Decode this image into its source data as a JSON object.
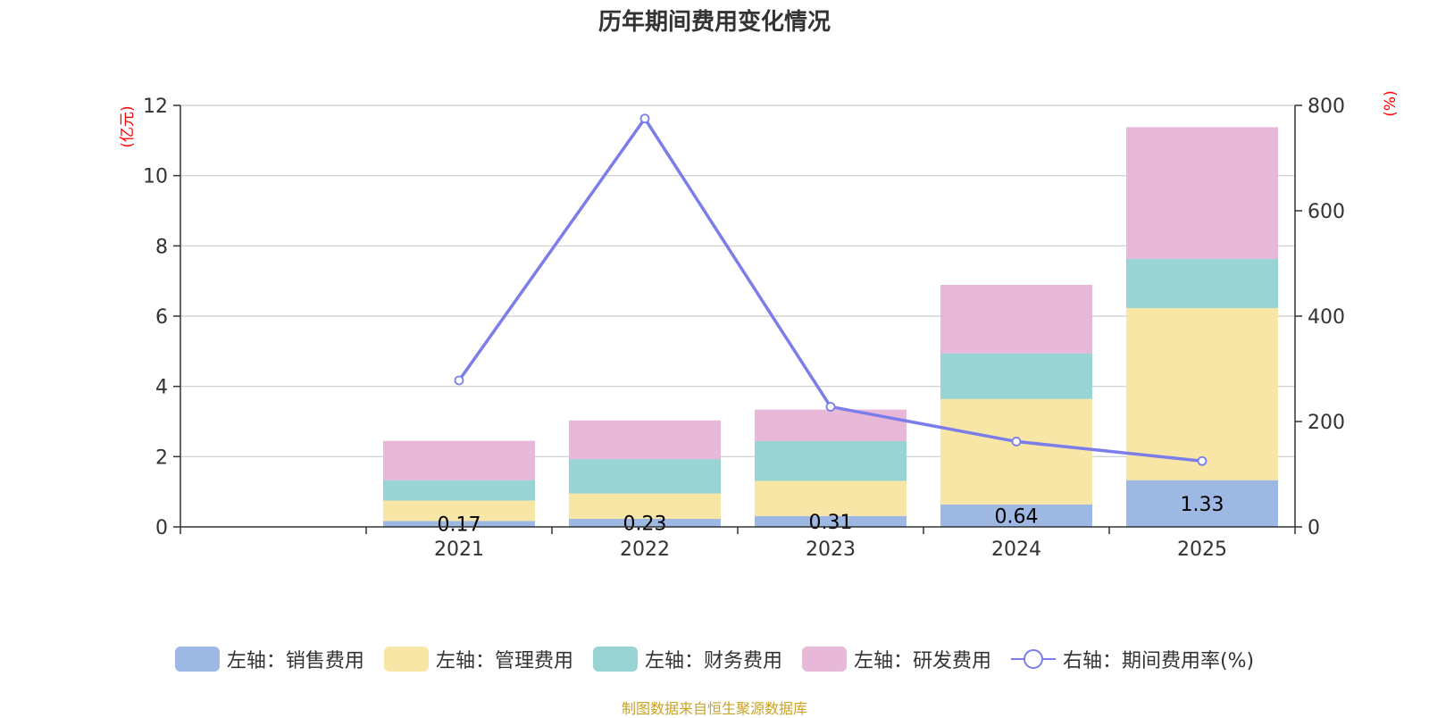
{
  "title": "历年期间费用变化情况",
  "source_note": "制图数据来自恒生聚源数据库",
  "colors": {
    "sales": "#9db8e3",
    "admin": "#f7e6a6",
    "finance": "#98d4d4",
    "rnd": "#e7b8d8",
    "ratio_line": "#7b7eea",
    "axis_unit": "#ff0000",
    "grid": "#cccccc",
    "axis": "#333333"
  },
  "chart_data": {
    "type": "bar",
    "stacked": true,
    "categories": [
      "",
      "2021",
      "2022",
      "2023",
      "2024",
      "2025"
    ],
    "series": [
      {
        "name": "左轴：销售费用",
        "axis": "left",
        "values": [
          null,
          0.17,
          0.23,
          0.31,
          0.64,
          1.33
        ]
      },
      {
        "name": "左轴：管理费用",
        "axis": "left",
        "values": [
          null,
          0.58,
          0.72,
          1.0,
          3.0,
          4.9
        ]
      },
      {
        "name": "左轴：财务费用",
        "axis": "left",
        "values": [
          null,
          0.58,
          0.98,
          1.13,
          1.3,
          1.4
        ]
      },
      {
        "name": "左轴：研发费用",
        "axis": "left",
        "values": [
          null,
          1.12,
          1.1,
          0.9,
          1.95,
          3.75
        ]
      }
    ],
    "line_series": {
      "name": "右轴：期间费用率(%)",
      "axis": "right",
      "type": "line",
      "values": [
        null,
        278,
        775,
        228,
        162,
        125
      ]
    },
    "data_labels": [
      "",
      "0.17",
      "0.23",
      "0.31",
      "0.64",
      "1.33"
    ],
    "y_left": {
      "label": "(亿元)",
      "min": 0,
      "max": 12,
      "ticks": [
        0,
        2,
        4,
        6,
        8,
        10,
        12
      ]
    },
    "y_right": {
      "label": "(%)",
      "min": 0,
      "max": 800,
      "ticks": [
        0,
        200,
        400,
        600,
        800
      ]
    },
    "grid": true,
    "legend_position": "bottom"
  }
}
